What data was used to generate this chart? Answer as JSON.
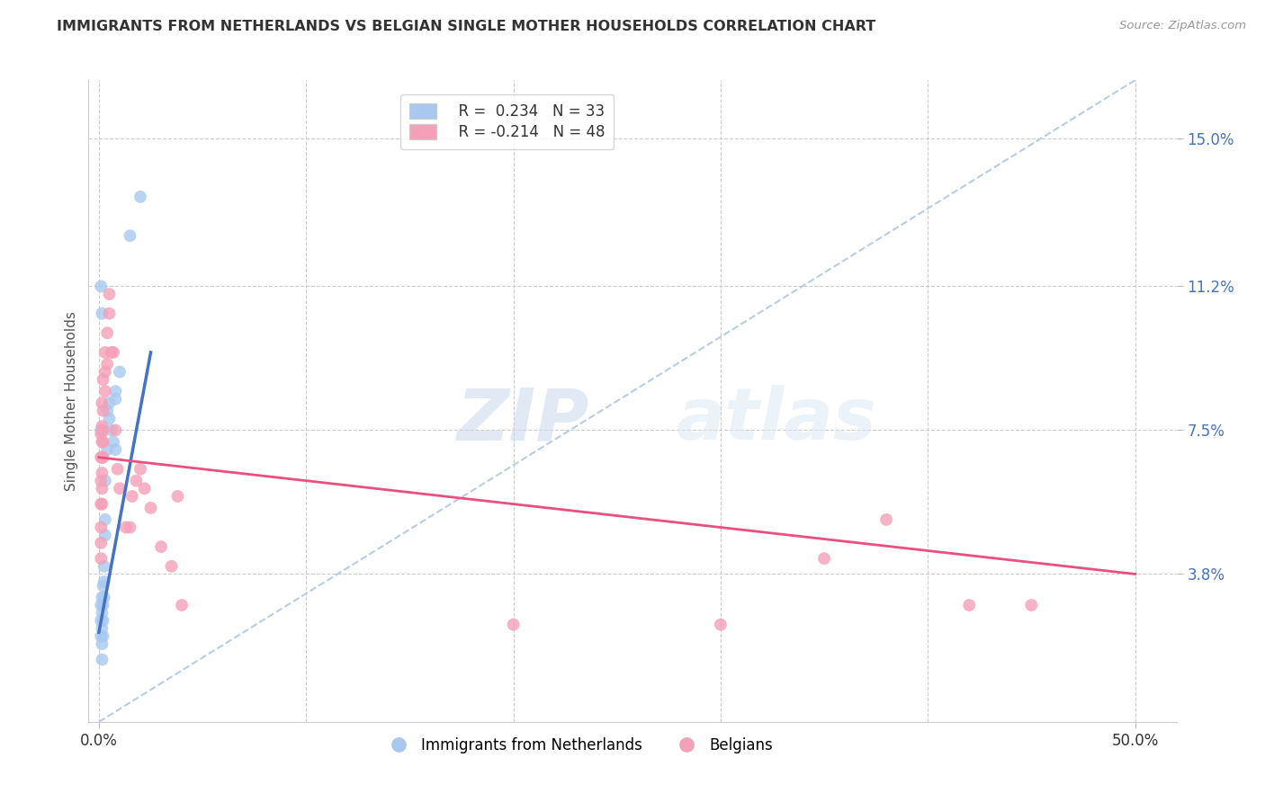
{
  "title": "IMMIGRANTS FROM NETHERLANDS VS BELGIAN SINGLE MOTHER HOUSEHOLDS CORRELATION CHART",
  "source": "Source: ZipAtlas.com",
  "ylabel": "Single Mother Households",
  "ytick_labels": [
    "3.8%",
    "7.5%",
    "11.2%",
    "15.0%"
  ],
  "ytick_values": [
    3.8,
    7.5,
    11.2,
    15.0
  ],
  "xtick_labels": [
    "0.0%",
    "50.0%"
  ],
  "xtick_positions": [
    0.0,
    50.0
  ],
  "xlim": [
    -0.5,
    52.0
  ],
  "ylim": [
    0.0,
    16.5
  ],
  "legend_blue_r": "0.234",
  "legend_blue_n": "33",
  "legend_pink_r": "-0.214",
  "legend_pink_n": "48",
  "blue_color": "#a8c8f0",
  "blue_line_color": "#4472c4",
  "pink_color": "#f4a0b8",
  "pink_line_color": "#e85080",
  "dashed_line_color": "#b8cce4",
  "blue_scatter": [
    [
      0.1,
      3.0
    ],
    [
      0.1,
      2.6
    ],
    [
      0.1,
      2.2
    ],
    [
      0.15,
      3.2
    ],
    [
      0.15,
      2.8
    ],
    [
      0.15,
      2.4
    ],
    [
      0.15,
      2.0
    ],
    [
      0.15,
      1.6
    ],
    [
      0.2,
      3.5
    ],
    [
      0.2,
      3.0
    ],
    [
      0.2,
      2.6
    ],
    [
      0.2,
      2.2
    ],
    [
      0.25,
      4.0
    ],
    [
      0.25,
      3.6
    ],
    [
      0.25,
      3.2
    ],
    [
      0.3,
      6.2
    ],
    [
      0.3,
      5.2
    ],
    [
      0.3,
      4.8
    ],
    [
      0.4,
      7.0
    ],
    [
      0.5,
      8.2
    ],
    [
      0.8,
      8.5
    ],
    [
      0.8,
      8.3
    ],
    [
      1.0,
      9.0
    ],
    [
      0.1,
      11.2
    ],
    [
      0.15,
      10.5
    ],
    [
      0.4,
      8.0
    ],
    [
      0.5,
      7.8
    ],
    [
      0.6,
      7.5
    ],
    [
      0.7,
      7.2
    ],
    [
      0.8,
      7.0
    ],
    [
      1.5,
      12.5
    ],
    [
      2.0,
      13.5
    ],
    [
      0.1,
      7.5
    ]
  ],
  "pink_scatter": [
    [
      0.1,
      7.4
    ],
    [
      0.1,
      6.8
    ],
    [
      0.1,
      6.2
    ],
    [
      0.1,
      5.6
    ],
    [
      0.1,
      5.0
    ],
    [
      0.1,
      4.6
    ],
    [
      0.1,
      4.2
    ],
    [
      0.15,
      8.2
    ],
    [
      0.15,
      7.6
    ],
    [
      0.15,
      7.2
    ],
    [
      0.15,
      6.8
    ],
    [
      0.15,
      6.4
    ],
    [
      0.15,
      6.0
    ],
    [
      0.15,
      5.6
    ],
    [
      0.2,
      8.8
    ],
    [
      0.2,
      8.0
    ],
    [
      0.2,
      7.5
    ],
    [
      0.2,
      7.2
    ],
    [
      0.2,
      6.8
    ],
    [
      0.3,
      9.5
    ],
    [
      0.3,
      9.0
    ],
    [
      0.3,
      8.5
    ],
    [
      0.4,
      10.0
    ],
    [
      0.4,
      9.2
    ],
    [
      0.5,
      11.0
    ],
    [
      0.5,
      10.5
    ],
    [
      0.6,
      9.5
    ],
    [
      0.7,
      9.5
    ],
    [
      0.8,
      7.5
    ],
    [
      0.9,
      6.5
    ],
    [
      1.0,
      6.0
    ],
    [
      1.3,
      5.0
    ],
    [
      1.5,
      5.0
    ],
    [
      1.6,
      5.8
    ],
    [
      1.8,
      6.2
    ],
    [
      2.0,
      6.5
    ],
    [
      2.2,
      6.0
    ],
    [
      2.5,
      5.5
    ],
    [
      3.0,
      4.5
    ],
    [
      3.5,
      4.0
    ],
    [
      3.8,
      5.8
    ],
    [
      4.0,
      3.0
    ],
    [
      20.0,
      2.5
    ],
    [
      30.0,
      2.5
    ],
    [
      35.0,
      4.2
    ],
    [
      38.0,
      5.2
    ],
    [
      42.0,
      3.0
    ],
    [
      45.0,
      3.0
    ]
  ],
  "blue_line_x": [
    0.0,
    2.5
  ],
  "blue_line_y": [
    2.3,
    9.5
  ],
  "pink_line_x": [
    0.0,
    50.0
  ],
  "pink_line_y": [
    6.8,
    3.8
  ],
  "dashed_line_x": [
    0.0,
    50.0
  ],
  "dashed_line_y": [
    0.0,
    16.5
  ],
  "watermark_zip": "ZIP",
  "watermark_atlas": "atlas",
  "marker_size": 100
}
